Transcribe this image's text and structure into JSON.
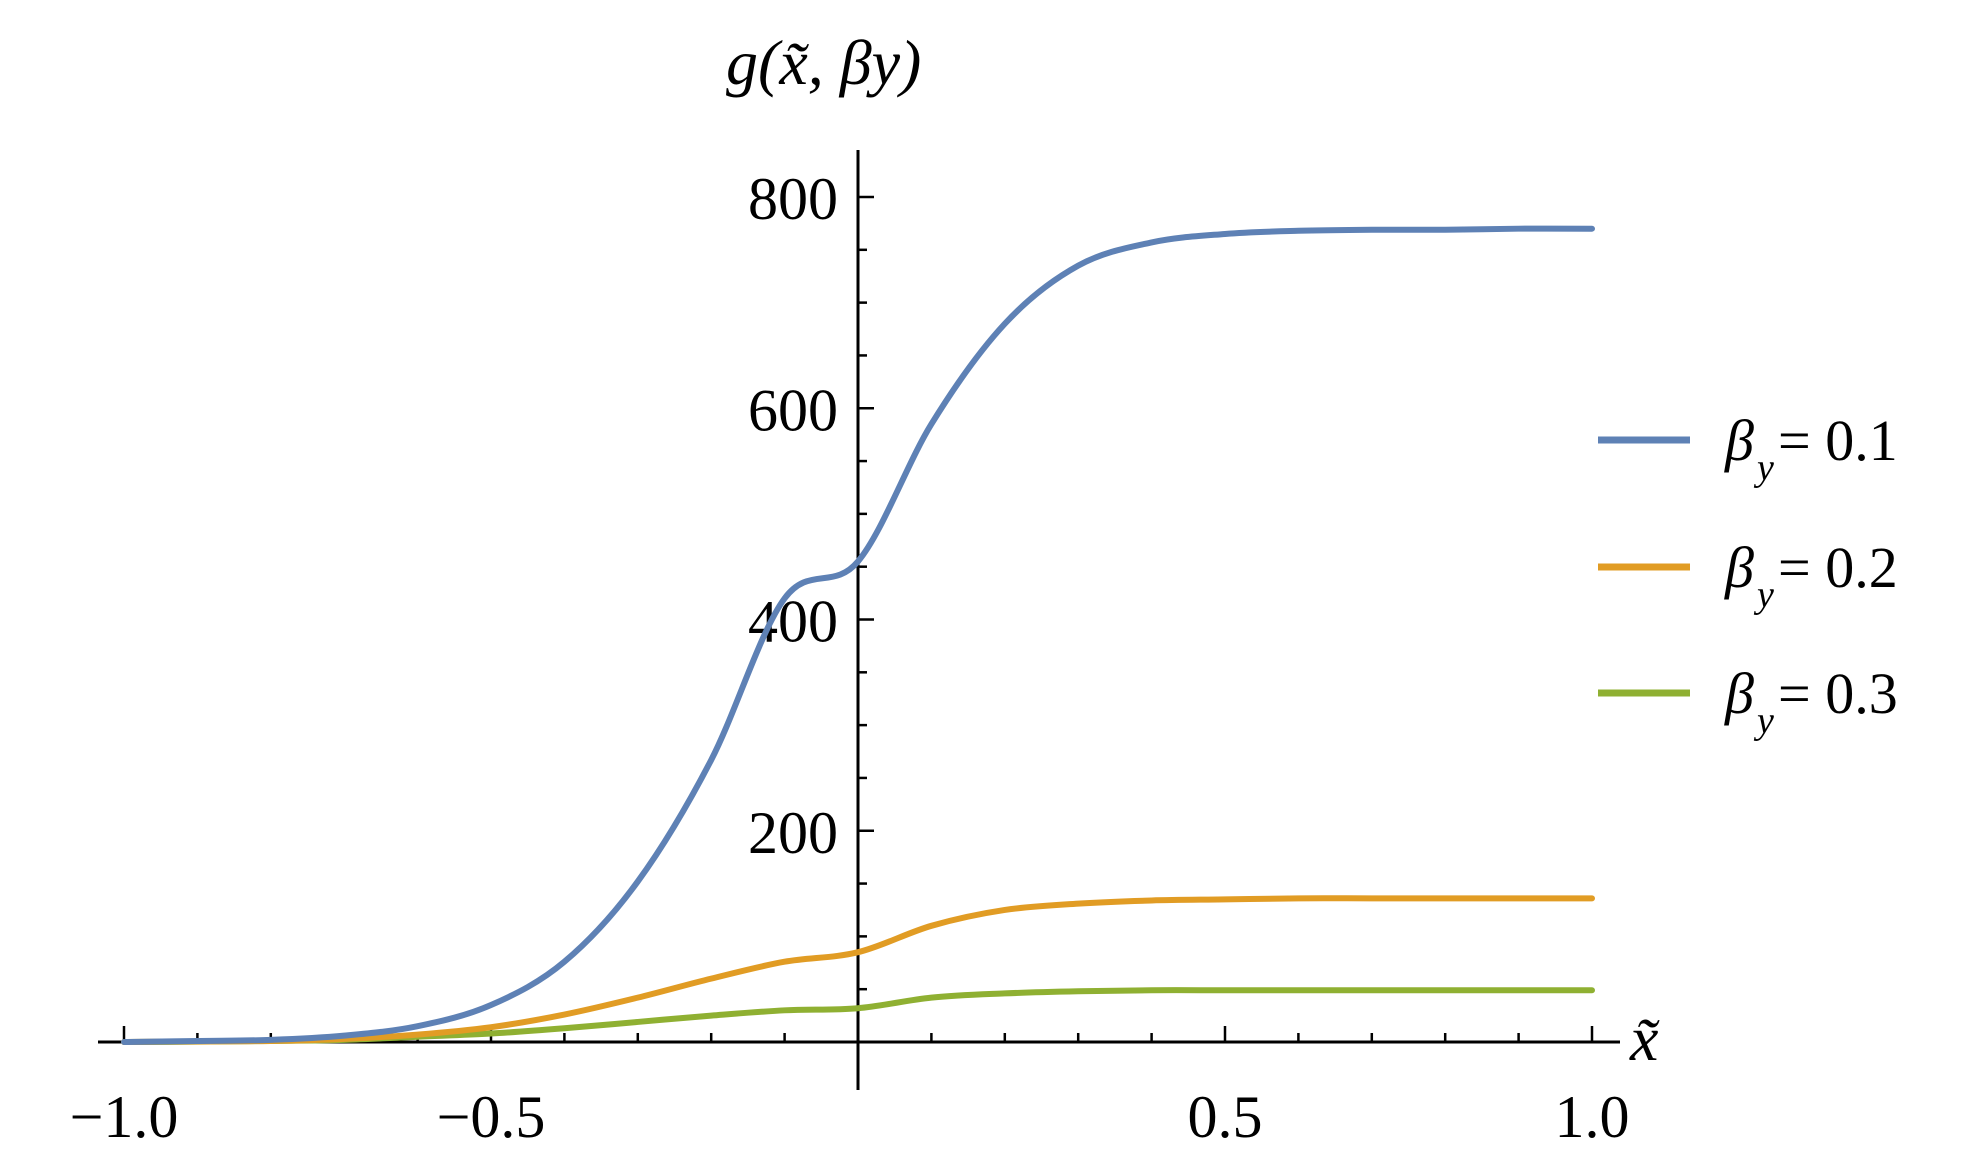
{
  "chart_data": {
    "type": "line",
    "xlabel": "x̃",
    "ylabel": "g(x̃, βy)",
    "xlim": [
      -1.0,
      1.0
    ],
    "ylim": [
      0,
      800
    ],
    "x_ticks": [
      -1.0,
      -0.5,
      0.5,
      1.0
    ],
    "x_tick_labels": [
      "−1.0",
      "−0.5",
      "0.5",
      "1.0"
    ],
    "y_ticks": [
      200,
      400,
      600,
      800
    ],
    "y_tick_labels": [
      "200",
      "400",
      "600",
      "800"
    ],
    "x_minor_step": 0.1,
    "y_minor_step": 50,
    "grid": false,
    "legend": {
      "placement": "right"
    },
    "x": [
      -1.0,
      -0.9,
      -0.8,
      -0.7,
      -0.6,
      -0.5,
      -0.4,
      -0.3,
      -0.2,
      -0.1,
      0.0,
      0.1,
      0.2,
      0.3,
      0.4,
      0.5,
      0.6,
      0.7,
      0.8,
      0.9,
      1.0
    ],
    "series": [
      {
        "name": "βy = 0.1",
        "legend_label": "= 0.1",
        "color": "#5E81B5",
        "values": [
          0,
          1,
          2,
          6,
          15,
          35,
          76,
          152,
          267,
          420,
          455,
          585,
          680,
          735,
          757,
          765,
          768,
          769,
          769,
          770,
          770
        ]
      },
      {
        "name": "βy = 0.2",
        "legend_label": "= 0.2",
        "color": "#E19C24",
        "values": [
          0,
          0.5,
          1,
          3,
          7,
          14,
          26,
          42,
          60,
          76,
          85,
          110,
          125,
          131,
          134,
          135,
          136,
          136,
          136,
          136,
          136
        ]
      },
      {
        "name": "βy = 0.3",
        "legend_label": "= 0.3",
        "color": "#8FB032",
        "values": [
          0,
          0.3,
          1,
          2,
          5,
          8,
          13,
          19,
          25,
          30,
          32,
          42,
          46,
          48,
          49,
          49,
          49,
          49,
          49,
          49,
          49
        ]
      }
    ]
  }
}
